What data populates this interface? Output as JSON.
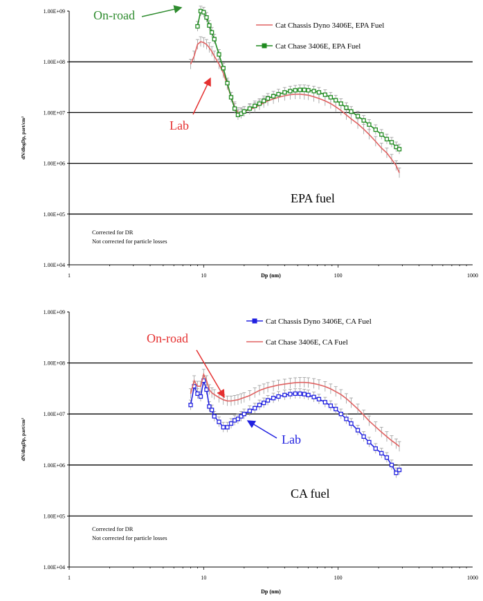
{
  "chart_data": [
    {
      "type": "line",
      "xscale": "log",
      "yscale": "log",
      "xlim": [
        1,
        1000
      ],
      "ylim": [
        10000,
        1000000000
      ],
      "xlabel": "Dp (nm)",
      "ylabel": "dN/dlogDp, part/cm³",
      "yticks": [
        "1.00E+04",
        "1.00E+05",
        "1.00E+06",
        "1.00E+07",
        "1.00E+08",
        "1.00E+09"
      ],
      "xticks": [
        "1",
        "10",
        "100",
        "1000"
      ],
      "grid": "horizontal major lines",
      "legend_position": "top-right",
      "fuel_label": "EPA fuel",
      "notes": [
        "Corrected for DR",
        "Not corrected for particle losses"
      ],
      "annotations": [
        {
          "text": "On-road",
          "color": "#2e8b2e",
          "target_series": 1
        },
        {
          "text": "Lab",
          "color": "#e53030",
          "target_series": 0
        }
      ],
      "series": [
        {
          "name": "Cat Chassis Dyno 3406E, EPA Fuel",
          "color": "#e06060",
          "marker": "none",
          "x": [
            8,
            8.5,
            9,
            9.5,
            10,
            10.5,
            11,
            11.5,
            12,
            13,
            14,
            15,
            16,
            17,
            18,
            19,
            20,
            22,
            24,
            26,
            28,
            30,
            33,
            36,
            40,
            44,
            48,
            52,
            56,
            60,
            66,
            72,
            80,
            88,
            96,
            105,
            115,
            125,
            140,
            155,
            170,
            190,
            210,
            230,
            250,
            270,
            285
          ],
          "y": [
            90000000,
            130000000,
            220000000,
            250000000,
            240000000,
            220000000,
            190000000,
            160000000,
            130000000,
            90000000,
            60000000,
            35000000,
            20000000,
            13000000,
            10000000,
            10000000,
            10500000,
            11500000,
            12500000,
            14000000,
            15500000,
            17000000,
            18500000,
            20000000,
            21500000,
            22500000,
            23000000,
            23000000,
            22500000,
            22000000,
            20500000,
            19000000,
            17000000,
            15000000,
            13000000,
            11000000,
            9000000,
            7500000,
            6000000,
            4700000,
            3700000,
            2700000,
            2000000,
            1600000,
            1200000,
            900000,
            650000
          ]
        },
        {
          "name": "Cat Chase 3406E, EPA Fuel",
          "color": "#1e8a1e",
          "marker": "square",
          "x": [
            9,
            9.5,
            10,
            10.5,
            11,
            11.5,
            12,
            13,
            14,
            15,
            16,
            17,
            18,
            19,
            20,
            22,
            24,
            26,
            28,
            30,
            33,
            36,
            40,
            44,
            48,
            52,
            56,
            60,
            66,
            72,
            80,
            88,
            96,
            105,
            115,
            125,
            140,
            155,
            170,
            190,
            210,
            230,
            250,
            270,
            285
          ],
          "y": [
            500000000,
            1000000000,
            950000000,
            750000000,
            520000000,
            380000000,
            280000000,
            140000000,
            75000000,
            38000000,
            20000000,
            12000000,
            9000000,
            9500000,
            10500000,
            12000000,
            13500000,
            15000000,
            17000000,
            19000000,
            21000000,
            23000000,
            25000000,
            26500000,
            27500000,
            28000000,
            28000000,
            27500000,
            26500000,
            25000000,
            22500000,
            20000000,
            17500000,
            15000000,
            12500000,
            10500000,
            8500000,
            7000000,
            5800000,
            4600000,
            3700000,
            3000000,
            2600000,
            2100000,
            1900000
          ]
        }
      ]
    },
    {
      "type": "line",
      "xscale": "log",
      "yscale": "log",
      "xlim": [
        1,
        1000
      ],
      "ylim": [
        10000,
        1000000000
      ],
      "xlabel": "Dp (nm)",
      "ylabel": "dN/dlogDp, part/cm³",
      "yticks": [
        "1.00E+04",
        "1.00E+05",
        "1.00E+06",
        "1.00E+07",
        "1.00E+08",
        "1.00E+09"
      ],
      "xticks": [
        "1",
        "10",
        "100",
        "1000"
      ],
      "grid": "horizontal major lines",
      "legend_position": "top-right",
      "fuel_label": "CA fuel",
      "notes": [
        "Corrected for DR",
        "Not corrected for particle losses"
      ],
      "annotations": [
        {
          "text": "On-road",
          "color": "#e53030",
          "target_series": 1
        },
        {
          "text": "Lab",
          "color": "#2020e0",
          "target_series": 0
        }
      ],
      "series": [
        {
          "name": "Cat Chassis Dyno 3406E, CA Fuel",
          "color": "#2020e0",
          "marker": "square",
          "x": [
            8,
            8.5,
            9,
            9.5,
            10,
            10.5,
            11,
            11.5,
            12,
            13,
            14,
            15,
            16,
            17,
            18,
            19,
            20,
            22,
            24,
            26,
            28,
            30,
            33,
            36,
            40,
            44,
            48,
            52,
            56,
            60,
            66,
            72,
            80,
            88,
            96,
            105,
            115,
            125,
            140,
            155,
            170,
            190,
            210,
            230,
            250,
            270,
            285
          ],
          "y": [
            15000000,
            35000000,
            25000000,
            22000000,
            45000000,
            30000000,
            14000000,
            12000000,
            9000000,
            7000000,
            5500000,
            5500000,
            6500000,
            7500000,
            8000000,
            9000000,
            10000000,
            11500000,
            13000000,
            15000000,
            16500000,
            18500000,
            20500000,
            22000000,
            23500000,
            24500000,
            25000000,
            25000000,
            24500000,
            23500000,
            21500000,
            19500000,
            17000000,
            14500000,
            12500000,
            10000000,
            8000000,
            6500000,
            4800000,
            3600000,
            2800000,
            2100000,
            1700000,
            1400000,
            1000000,
            700000,
            800000
          ]
        },
        {
          "name": "Cat Chase 3406E, CA Fuel",
          "color": "#e06060",
          "marker": "none",
          "x": [
            8,
            8.5,
            9,
            9.5,
            10,
            10.5,
            11,
            11.5,
            12,
            13,
            14,
            15,
            16,
            17,
            18,
            19,
            20,
            22,
            24,
            26,
            28,
            30,
            33,
            36,
            40,
            44,
            48,
            52,
            56,
            60,
            66,
            72,
            80,
            88,
            96,
            105,
            115,
            125,
            140,
            155,
            170,
            190,
            210,
            230,
            250,
            270,
            285
          ],
          "y": [
            25000000,
            45000000,
            35000000,
            35000000,
            60000000,
            45000000,
            30000000,
            26000000,
            24000000,
            21000000,
            19000000,
            18000000,
            18000000,
            18500000,
            19000000,
            20000000,
            21000000,
            23000000,
            26000000,
            29000000,
            31000000,
            33000000,
            35000000,
            37000000,
            38500000,
            40000000,
            41000000,
            41500000,
            41500000,
            41000000,
            39500000,
            37500000,
            34500000,
            31000000,
            27500000,
            24000000,
            20000000,
            16500000,
            12500000,
            9500000,
            7300000,
            5600000,
            4400000,
            3600000,
            3000000,
            2600000,
            2300000
          ]
        }
      ]
    }
  ]
}
